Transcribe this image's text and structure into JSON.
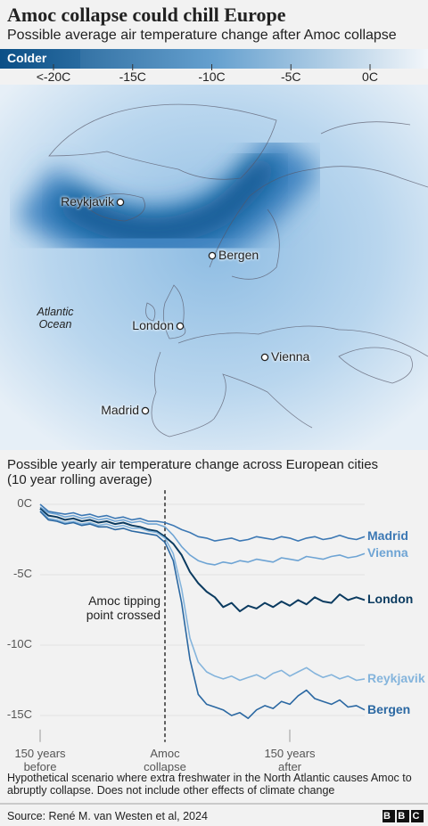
{
  "title": "Amoc collapse could chill Europe",
  "subtitle": "Possible average air temperature change after Amoc collapse",
  "map": {
    "legend_label": "Colder",
    "scale_lim": [
      -20,
      0
    ],
    "scale_ticks": [
      {
        "value": -20,
        "label": "<-20C"
      },
      {
        "value": -15,
        "label": "-15C"
      },
      {
        "value": -10,
        "label": "-10C"
      },
      {
        "value": -5,
        "label": "-5C"
      },
      {
        "value": 0,
        "label": "0C"
      }
    ],
    "ocean_label": "Atlantic\nOcean",
    "cities": [
      "Reykjavik",
      "Bergen",
      "London",
      "Vienna",
      "Madrid"
    ]
  },
  "chart_data": {
    "type": "line",
    "title": "Possible yearly air temperature change across European cities\n(10 year rolling average)",
    "annotation": "Amoc tipping\npoint crossed",
    "x": [
      -150,
      -140,
      -130,
      -120,
      -110,
      -100,
      -90,
      -80,
      -70,
      -60,
      -50,
      -40,
      -30,
      -20,
      -10,
      0,
      10,
      20,
      30,
      40,
      50,
      60,
      70,
      80,
      90,
      100,
      110,
      120,
      130,
      140,
      150,
      160,
      170,
      180,
      190,
      200,
      210,
      220,
      230,
      240
    ],
    "xlim": [
      -150,
      240
    ],
    "xticks": [
      {
        "value": -150,
        "label": "150 years\nbefore"
      },
      {
        "value": 0,
        "label": "Amoc\ncollapse"
      },
      {
        "value": 150,
        "label": "150 years\nafter"
      }
    ],
    "ylim": [
      -16,
      0.5
    ],
    "yticks": [
      {
        "value": 0,
        "label": "0C"
      },
      {
        "value": -5,
        "label": "-5C"
      },
      {
        "value": -10,
        "label": "-10C"
      },
      {
        "value": -15,
        "label": "-15C"
      }
    ],
    "series": [
      {
        "name": "Madrid",
        "color": "#3c78b4",
        "values": [
          0,
          -0.5,
          -0.6,
          -0.7,
          -0.6,
          -0.8,
          -0.7,
          -0.9,
          -0.8,
          -1.0,
          -0.9,
          -1.1,
          -1.0,
          -1.2,
          -1.2,
          -1.3,
          -1.5,
          -1.8,
          -2.0,
          -2.3,
          -2.4,
          -2.6,
          -2.5,
          -2.4,
          -2.6,
          -2.5,
          -2.3,
          -2.4,
          -2.5,
          -2.3,
          -2.4,
          -2.6,
          -2.4,
          -2.3,
          -2.5,
          -2.4,
          -2.2,
          -2.4,
          -2.5,
          -2.3
        ]
      },
      {
        "name": "Vienna",
        "color": "#6ea4d4",
        "values": [
          -0.2,
          -0.6,
          -0.7,
          -0.9,
          -0.8,
          -1.0,
          -0.9,
          -1.1,
          -1.0,
          -1.2,
          -1.1,
          -1.3,
          -1.2,
          -1.4,
          -1.4,
          -1.6,
          -2.2,
          -3.0,
          -3.6,
          -4.0,
          -4.2,
          -4.3,
          -4.1,
          -4.2,
          -4.0,
          -4.1,
          -3.9,
          -4.0,
          -4.1,
          -3.8,
          -3.9,
          -4.0,
          -3.7,
          -3.8,
          -3.9,
          -3.7,
          -3.6,
          -3.8,
          -3.7,
          -3.5
        ]
      },
      {
        "name": "London",
        "color": "#0b3b60",
        "values": [
          -0.3,
          -0.8,
          -0.9,
          -1.1,
          -1.0,
          -1.2,
          -1.1,
          -1.3,
          -1.2,
          -1.4,
          -1.3,
          -1.5,
          -1.6,
          -1.8,
          -1.9,
          -2.3,
          -2.8,
          -3.6,
          -4.8,
          -5.6,
          -6.2,
          -6.6,
          -7.3,
          -7.0,
          -7.6,
          -7.2,
          -7.4,
          -7.0,
          -7.3,
          -6.9,
          -7.2,
          -6.8,
          -7.1,
          -6.6,
          -6.9,
          -7.0,
          -6.4,
          -6.8,
          -6.6,
          -6.8
        ]
      },
      {
        "name": "Reykjavik",
        "color": "#84b4dc",
        "values": [
          -0.4,
          -1.0,
          -1.1,
          -1.3,
          -1.2,
          -1.4,
          -1.3,
          -1.5,
          -1.4,
          -1.6,
          -1.5,
          -1.7,
          -1.7,
          -1.9,
          -2.0,
          -2.4,
          -3.5,
          -6.0,
          -9.5,
          -11.2,
          -11.9,
          -12.2,
          -12.4,
          -12.2,
          -12.5,
          -12.3,
          -12.1,
          -12.4,
          -12.0,
          -11.8,
          -12.2,
          -11.9,
          -11.6,
          -12.0,
          -12.3,
          -12.1,
          -12.4,
          -12.2,
          -12.5,
          -12.4
        ]
      },
      {
        "name": "Bergen",
        "color": "#2b68a2",
        "values": [
          -0.5,
          -1.1,
          -1.2,
          -1.4,
          -1.3,
          -1.5,
          -1.4,
          -1.6,
          -1.6,
          -1.8,
          -1.7,
          -1.9,
          -2.0,
          -2.1,
          -2.2,
          -2.7,
          -4.0,
          -7.0,
          -11.0,
          -13.5,
          -14.2,
          -14.4,
          -14.6,
          -15.0,
          -14.8,
          -15.2,
          -14.6,
          -14.3,
          -14.5,
          -14.0,
          -14.2,
          -13.6,
          -13.2,
          -13.8,
          -14.0,
          -14.2,
          -13.9,
          -14.4,
          -14.3,
          -14.6
        ]
      }
    ]
  },
  "note": "Hypothetical scenario where extra freshwater in the North Atlantic causes Amoc to abruptly collapse. Does not include other effects of climate change",
  "source": "Source: René M. van Westen et al, 2024",
  "logo": "BBC"
}
